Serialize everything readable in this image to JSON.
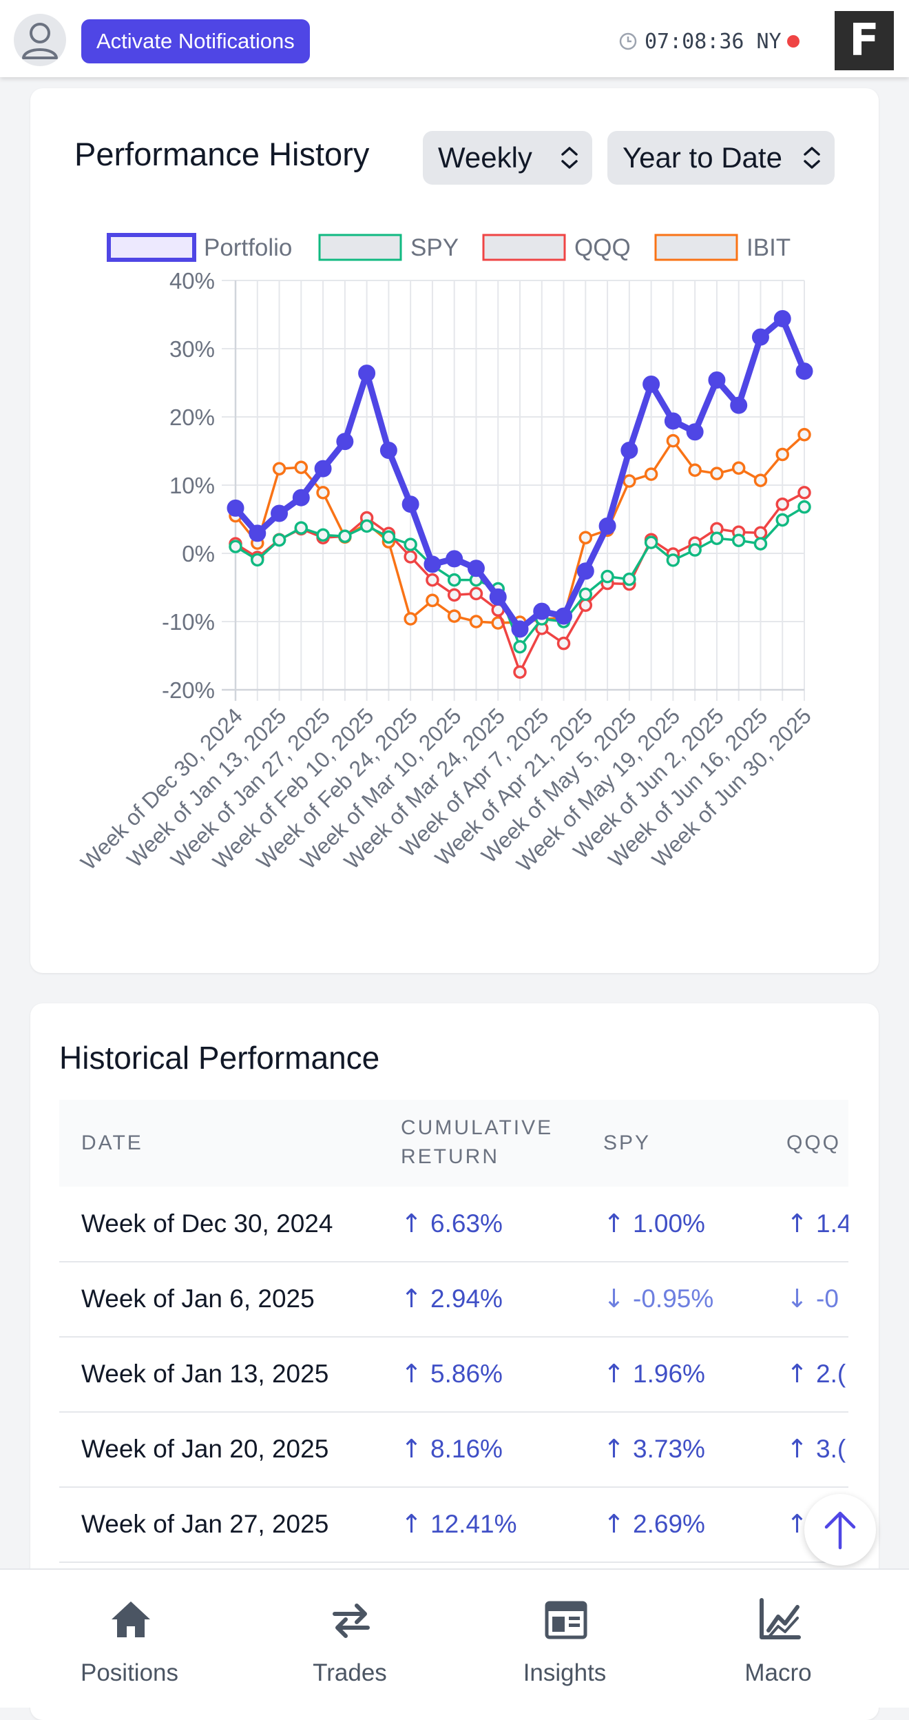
{
  "header": {
    "notify_label": "Activate Notifications",
    "clock_time": "07:08:36",
    "clock_zone": "NY",
    "brand_letter": "F"
  },
  "performance": {
    "title": "Performance History",
    "period_select": "Weekly",
    "range_select": "Year to Date"
  },
  "chart_data": {
    "type": "line",
    "legend_position": "top",
    "grid": true,
    "ylim": [
      -20,
      40
    ],
    "yticks": [
      "40%",
      "30%",
      "20%",
      "10%",
      "0%",
      "-10%",
      "-20%"
    ],
    "xtick_labels": [
      "Week of Dec 30, 2024",
      "Week of Jan 13, 2025",
      "Week of Jan 27, 2025",
      "Week of Feb 10, 2025",
      "Week of Feb 24, 2025",
      "Week of Mar 10, 2025",
      "Week of Mar 24, 2025",
      "Week of Apr 7, 2025",
      "Week of Apr 21, 2025",
      "Week of May 5, 2025",
      "Week of May 19, 2025",
      "Week of Jun 2, 2025",
      "Week of Jun 16, 2025",
      "Week of Jun 30, 2025"
    ],
    "x": [
      "Week of Dec 30, 2024",
      "Week of Jan 6, 2025",
      "Week of Jan 13, 2025",
      "Week of Jan 20, 2025",
      "Week of Jan 27, 2025",
      "Week of Feb 3, 2025",
      "Week of Feb 10, 2025",
      "Week of Feb 17, 2025",
      "Week of Feb 24, 2025",
      "Week of Mar 3, 2025",
      "Week of Mar 10, 2025",
      "Week of Mar 17, 2025",
      "Week of Mar 24, 2025",
      "Week of Mar 31, 2025",
      "Week of Apr 7, 2025",
      "Week of Apr 14, 2025",
      "Week of Apr 21, 2025",
      "Week of Apr 28, 2025",
      "Week of May 5, 2025",
      "Week of May 12, 2025",
      "Week of May 19, 2025",
      "Week of May 26, 2025",
      "Week of Jun 2, 2025",
      "Week of Jun 9, 2025",
      "Week of Jun 16, 2025",
      "Week of Jun 23, 2025",
      "Week of Jun 30, 2025"
    ],
    "series": [
      {
        "name": "Portfolio",
        "color": "#4f46e5",
        "values": [
          6.63,
          2.94,
          5.86,
          8.16,
          12.41,
          16.4,
          26.4,
          15.1,
          7.2,
          -1.6,
          -0.8,
          -2.2,
          -6.4,
          -11.1,
          -8.5,
          -9.2,
          -2.6,
          4.0,
          15.1,
          24.8,
          19.4,
          17.8,
          25.4,
          21.7,
          31.7,
          34.4,
          26.7
        ]
      },
      {
        "name": "SPY",
        "color": "#10b981",
        "values": [
          1.0,
          -0.95,
          1.96,
          3.73,
          2.69,
          2.5,
          4.0,
          2.4,
          1.3,
          -1.8,
          -3.9,
          -3.9,
          -5.2,
          -13.7,
          -9.6,
          -10.0,
          -6.0,
          -3.4,
          -3.8,
          1.6,
          -1.0,
          0.5,
          2.2,
          1.9,
          1.4,
          4.9,
          6.8
        ]
      },
      {
        "name": "QQQ",
        "color": "#ef4444",
        "values": [
          1.4,
          -0.6,
          2.0,
          3.6,
          2.3,
          2.5,
          5.2,
          2.9,
          -0.5,
          -3.9,
          -6.1,
          -5.9,
          -8.3,
          -17.4,
          -11.0,
          -13.2,
          -7.6,
          -4.4,
          -4.5,
          2.0,
          -0.1,
          1.5,
          3.6,
          3.1,
          3.0,
          7.2,
          8.9
        ]
      },
      {
        "name": "IBIT",
        "color": "#f97316",
        "values": [
          5.5,
          1.5,
          12.4,
          12.6,
          8.9,
          2.4,
          4.4,
          1.7,
          -9.6,
          -6.9,
          -9.2,
          -10.0,
          -10.2,
          -10.1,
          -9.7,
          -9.4,
          2.3,
          3.4,
          10.6,
          11.6,
          16.5,
          12.2,
          11.7,
          12.5,
          10.7,
          14.5,
          17.4
        ]
      }
    ]
  },
  "historical": {
    "title": "Historical Performance",
    "columns": [
      "DATE",
      "CUMULATIVE RETURN",
      "SPY",
      "QQQ"
    ],
    "rows": [
      {
        "date": "Week of Dec 30, 2024",
        "cum": "6.63%",
        "spy": "1.00%",
        "qqq": "1.4",
        "cum_up": true,
        "spy_up": true,
        "qqq_up": true
      },
      {
        "date": "Week of Jan 6, 2025",
        "cum": "2.94%",
        "spy": "-0.95%",
        "qqq": "-0",
        "cum_up": true,
        "spy_up": false,
        "qqq_up": false
      },
      {
        "date": "Week of Jan 13, 2025",
        "cum": "5.86%",
        "spy": "1.96%",
        "qqq": "2.(",
        "cum_up": true,
        "spy_up": true,
        "qqq_up": true
      },
      {
        "date": "Week of Jan 20, 2025",
        "cum": "8.16%",
        "spy": "3.73%",
        "qqq": "3.(",
        "cum_up": true,
        "spy_up": true,
        "qqq_up": true
      },
      {
        "date": "Week of Jan 27, 2025",
        "cum": "12.41%",
        "spy": "2.69%",
        "qqq": "",
        "cum_up": true,
        "spy_up": true,
        "qqq_up": true
      }
    ]
  },
  "nav": {
    "items": [
      {
        "label": "Positions",
        "icon": "home-icon"
      },
      {
        "label": "Trades",
        "icon": "swap-arrows-icon"
      },
      {
        "label": "Insights",
        "icon": "newspaper-icon"
      },
      {
        "label": "Macro",
        "icon": "chart-line-icon"
      }
    ]
  },
  "colors": {
    "accent": "#4f46e5",
    "spy": "#10b981",
    "qqq": "#ef4444",
    "ibit": "#f97316"
  }
}
